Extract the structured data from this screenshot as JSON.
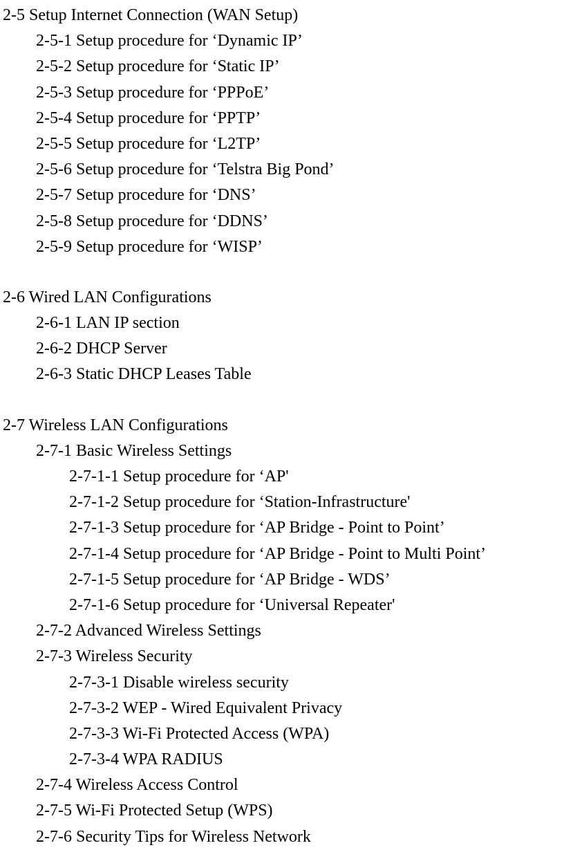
{
  "sections": [
    {
      "title": "2-5 Setup Internet Connection (WAN Setup)",
      "items": [
        {
          "text": "2-5-1 Setup procedure for ‘Dynamic IP’",
          "level": 1
        },
        {
          "text": "2-5-2 Setup procedure for ‘Static IP’",
          "level": 1
        },
        {
          "text": "2-5-3 Setup procedure for ‘PPPoE’",
          "level": 1
        },
        {
          "text": "2-5-4 Setup procedure for ‘PPTP’",
          "level": 1
        },
        {
          "text": "2-5-5 Setup procedure for ‘L2TP’",
          "level": 1
        },
        {
          "text": "2-5-6 Setup procedure for ‘Telstra Big Pond’",
          "level": 1
        },
        {
          "text": "2-5-7 Setup procedure for ‘DNS’",
          "level": 1
        },
        {
          "text": "2-5-8 Setup procedure for ‘DDNS’",
          "level": 1
        },
        {
          "text": "2-5-9 Setup procedure for ‘WISP’",
          "level": 1
        }
      ]
    },
    {
      "title": "2-6 Wired LAN Configurations",
      "items": [
        {
          "text": "2-6-1 LAN IP section",
          "level": 1
        },
        {
          "text": "2-6-2 DHCP Server",
          "level": 1
        },
        {
          "text": "2-6-3 Static DHCP Leases Table",
          "level": 1
        }
      ]
    },
    {
      "title": "2-7 Wireless LAN Configurations",
      "items": [
        {
          "text": "2-7-1 Basic Wireless Settings",
          "level": 1
        },
        {
          "text": "2-7-1-1 Setup procedure for ‘AP'",
          "level": 2
        },
        {
          "text": "2-7-1-2 Setup procedure for ‘Station-Infrastructure'",
          "level": 2
        },
        {
          "text": "2-7-1-3 Setup procedure for ‘AP Bridge - Point to Point’",
          "level": 2
        },
        {
          "text": "2-7-1-4 Setup procedure for ‘AP Bridge - Point to Multi Point’",
          "level": 2
        },
        {
          "text": "2-7-1-5 Setup procedure for ‘AP Bridge - WDS’",
          "level": 2
        },
        {
          "text": "2-7-1-6 Setup procedure for ‘Universal Repeater'",
          "level": 2
        },
        {
          "text": "2-7-2 Advanced Wireless Settings",
          "level": 1
        },
        {
          "text": "2-7-3 Wireless Security",
          "level": 1
        },
        {
          "text": "2-7-3-1 Disable wireless security",
          "level": 2
        },
        {
          "text": "2-7-3-2 WEP - Wired Equivalent Privacy",
          "level": 2
        },
        {
          "text": "2-7-3-3 Wi-Fi Protected Access (WPA)",
          "level": 2
        },
        {
          "text": "2-7-3-4 WPA RADIUS",
          "level": 2
        },
        {
          "text": "2-7-4 Wireless Access Control",
          "level": 1
        },
        {
          "text": "2-7-5 Wi-Fi Protected Setup (WPS)",
          "level": 1
        },
        {
          "text": "2-7-6 Security Tips for Wireless Network",
          "level": 1
        }
      ]
    }
  ]
}
